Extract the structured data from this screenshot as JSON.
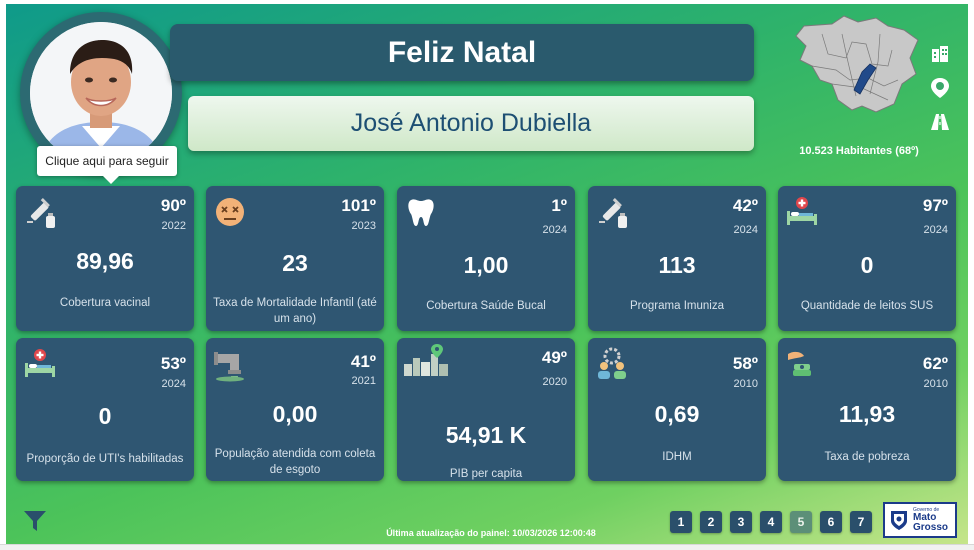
{
  "header": {
    "greeting": "Feliz Natal",
    "name": "José Antonio Dubiella",
    "tooltip": "Clique aqui para seguir"
  },
  "map": {
    "habitantes": "10.523 Habitantes (68º)",
    "side_icons": [
      "building-icon",
      "map-pin-icon",
      "road-icon"
    ]
  },
  "cards": [
    {
      "icon": "vaccine-icon",
      "rank": "90º",
      "year": "2022",
      "value": "89,96",
      "label": "Cobertura vacinal"
    },
    {
      "icon": "dead-face-icon",
      "rank": "101º",
      "year": "2023",
      "value": "23",
      "label": "Taxa de Mortalidade Infantil (até um ano)"
    },
    {
      "icon": "tooth-icon",
      "rank": "1º",
      "year": "2024",
      "value": "1,00",
      "label": "Cobertura Saúde Bucal"
    },
    {
      "icon": "vaccine-icon",
      "rank": "42º",
      "year": "2024",
      "value": "113",
      "label": "Programa Imuniza"
    },
    {
      "icon": "hospital-bed-icon",
      "rank": "97º",
      "year": "2024",
      "value": "0",
      "label": "Quantidade de leitos SUS"
    },
    {
      "icon": "hospital-bed-icon",
      "rank": "53º",
      "year": "2024",
      "value": "0",
      "label": "Proporção de UTI's habilitadas"
    },
    {
      "icon": "sewage-pipe-icon",
      "rank": "41º",
      "year": "2021",
      "value": "0,00",
      "label": "População atendida com coleta de esgoto"
    },
    {
      "icon": "city-pin-icon",
      "rank": "49º",
      "year": "2020",
      "value": "54,91 K",
      "label": "PIB per capita"
    },
    {
      "icon": "people-gear-icon",
      "rank": "58º",
      "year": "2010",
      "value": "0,69",
      "label": "IDHM"
    },
    {
      "icon": "hand-coin-icon",
      "rank": "62º",
      "year": "2010",
      "value": "11,93",
      "label": "Taxa de pobreza"
    }
  ],
  "footer": {
    "update_text": "Última atualização do painel: 10/03/2026 12:00:48",
    "pages": [
      "1",
      "2",
      "3",
      "4",
      "5",
      "6",
      "7"
    ],
    "active_page": "5",
    "logo_small": "Governo de",
    "logo_big_1": "Mato",
    "logo_big_2": "Grosso"
  },
  "colors": {
    "card_bg": "#2f5672",
    "banner_bg": "#2a5a6d",
    "name_color": "#1d4f73",
    "page_btn": "#2a4f6b",
    "page_btn_active": "#5c8f78"
  }
}
